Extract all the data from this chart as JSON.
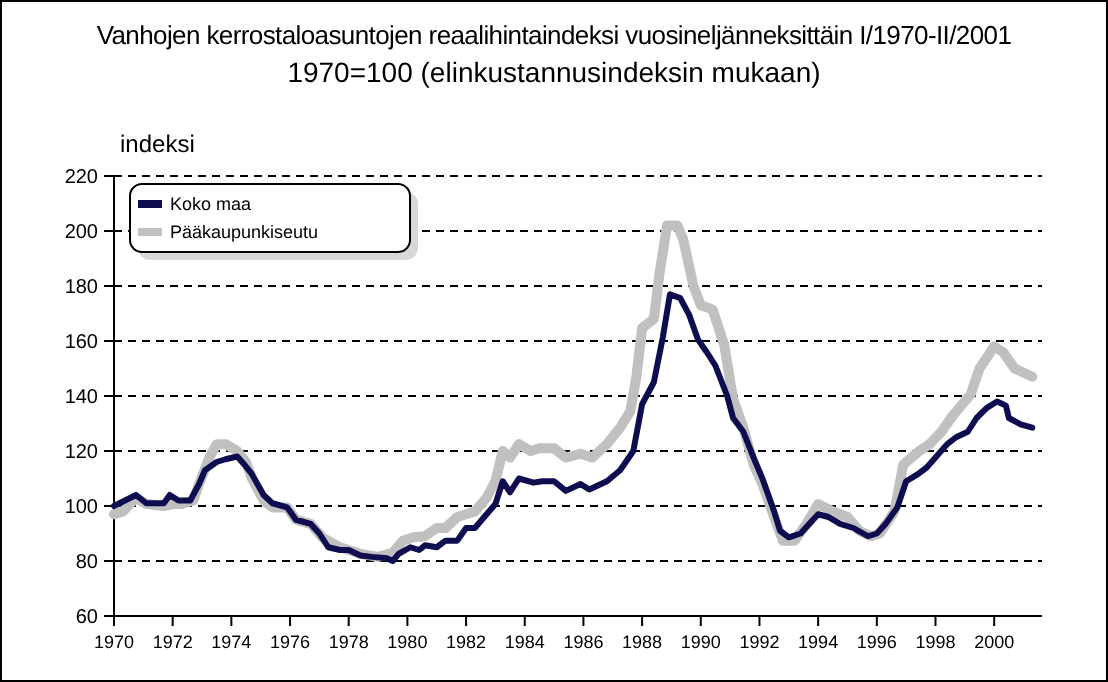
{
  "chart_data": {
    "type": "line",
    "title": "Vanhojen kerrostaloasuntojen reaalihintaindeksi vuosineljänneksittäin I/1970-II/2001",
    "subtitle": "1970=100 (elinkustannusindeksin mukaan)",
    "ylabel": "indeksi",
    "xlim": [
      1970,
      2001.63
    ],
    "xticks": [
      1970,
      1972,
      1974,
      1976,
      1978,
      1980,
      1982,
      1984,
      1986,
      1988,
      1990,
      1992,
      1994,
      1996,
      1998,
      2000
    ],
    "ylim": [
      60,
      220
    ],
    "yticks": [
      60,
      80,
      100,
      120,
      140,
      160,
      180,
      200,
      220
    ],
    "grid": "y",
    "legend": "top left",
    "marker": "none",
    "line_style": "solid",
    "series": [
      {
        "name": "Koko maa",
        "color": "#0d0d4f",
        "x": [
          1970,
          1970.75,
          1971.1,
          1971.7,
          1971.9,
          1972.2,
          1972.6,
          1972.9,
          1973.1,
          1973.5,
          1973.8,
          1974.2,
          1974.45,
          1974.7,
          1975.1,
          1975.4,
          1975.9,
          1976.2,
          1976.7,
          1977,
          1977.3,
          1977.7,
          1978,
          1978.4,
          1978.8,
          1979.3,
          1979.5,
          1979.7,
          1980.1,
          1980.4,
          1980.6,
          1981,
          1981.3,
          1981.7,
          1982,
          1982.3,
          1982.7,
          1983,
          1983.25,
          1983.5,
          1983.8,
          1984.3,
          1984.6,
          1985,
          1985.4,
          1985.9,
          1986.2,
          1986.8,
          1987.25,
          1987.7,
          1988,
          1988.4,
          1988.7,
          1988.95,
          1989.3,
          1989.6,
          1989.9,
          1990.2,
          1990.5,
          1990.9,
          1991.1,
          1991.45,
          1991.8,
          1992.1,
          1992.5,
          1992.7,
          1993,
          1993.4,
          1993.7,
          1994,
          1994.35,
          1994.75,
          1995.2,
          1995.7,
          1996,
          1996.3,
          1996.7,
          1997,
          1997.4,
          1997.7,
          1998,
          1998.4,
          1998.7,
          1999.1,
          1999.4,
          1999.75,
          2000.1,
          2000.4,
          2000.5,
          2000.9,
          2001.3
        ],
        "values": [
          100,
          104,
          101,
          101,
          104,
          102,
          102,
          108,
          113,
          116,
          117,
          118,
          115,
          111.6,
          104,
          101,
          99.5,
          95,
          93.5,
          90,
          85,
          84,
          84,
          82,
          81.5,
          81,
          80,
          82.6,
          85,
          84,
          85.7,
          85,
          87.4,
          87.4,
          92,
          92,
          97,
          100.7,
          109,
          105,
          110,
          108.5,
          109,
          109,
          105.5,
          108,
          106,
          109,
          113,
          120,
          137,
          145,
          161,
          177,
          175.6,
          169.6,
          160.6,
          156,
          151,
          140,
          132,
          127,
          117.6,
          110,
          98,
          91,
          88.6,
          90,
          93.5,
          97,
          96,
          93.5,
          92,
          89,
          90,
          93.5,
          99.5,
          109,
          111.6,
          114,
          117.6,
          122.5,
          125,
          127,
          132,
          135.7,
          138,
          136.5,
          132,
          129.7,
          128.5
        ]
      },
      {
        "name": "Pääkaupunkiseutu",
        "color": "#c0c0c0",
        "x": [
          1970,
          1970.3,
          1970.75,
          1971.1,
          1971.7,
          1972,
          1972.3,
          1972.7,
          1972.9,
          1973.25,
          1973.5,
          1973.8,
          1974.2,
          1974.5,
          1974.7,
          1975.1,
          1975.4,
          1975.9,
          1976.2,
          1976.7,
          1977.1,
          1977.7,
          1978.4,
          1979,
          1979.5,
          1979.85,
          1980.2,
          1980.6,
          1981,
          1981.3,
          1981.7,
          1982,
          1982.3,
          1982.7,
          1983,
          1983.25,
          1983.5,
          1983.8,
          1984.2,
          1984.5,
          1985,
          1985.4,
          1985.9,
          1986.3,
          1986.8,
          1987.25,
          1987.6,
          1987.8,
          1988,
          1988.4,
          1988.6,
          1988.85,
          1989.2,
          1989.4,
          1989.75,
          1990,
          1990.4,
          1990.8,
          1991.1,
          1991.45,
          1991.8,
          1992.1,
          1992.5,
          1992.8,
          1993.2,
          1993.6,
          1994,
          1994.5,
          1995,
          1995.4,
          1995.8,
          1996.1,
          1996.6,
          1996.9,
          1997.4,
          1997.8,
          1998.2,
          1998.6,
          1999.2,
          1999.5,
          2000,
          2000.3,
          2000.7,
          2001.3
        ],
        "values": [
          97,
          98,
          103,
          100.7,
          100,
          100.7,
          100.7,
          102,
          108,
          117.6,
          122.5,
          122.5,
          120,
          116,
          110,
          102,
          99.5,
          99.5,
          95,
          93.5,
          88.6,
          85,
          82.6,
          81.5,
          83,
          87.4,
          88.6,
          89,
          92,
          92,
          96,
          97,
          98,
          103,
          109,
          120,
          117.6,
          122.5,
          120,
          121,
          121,
          117.6,
          119,
          117.6,
          122.5,
          128.5,
          134.5,
          146.6,
          164.7,
          168,
          185,
          202,
          202,
          197,
          180,
          173,
          171.5,
          158.5,
          139,
          128.5,
          115,
          108,
          96,
          87.4,
          87.4,
          93.5,
          100.7,
          98,
          96,
          91,
          89,
          90,
          98,
          115,
          119.6,
          122.5,
          127,
          133,
          140.6,
          150,
          158,
          156,
          150,
          147
        ]
      }
    ]
  }
}
